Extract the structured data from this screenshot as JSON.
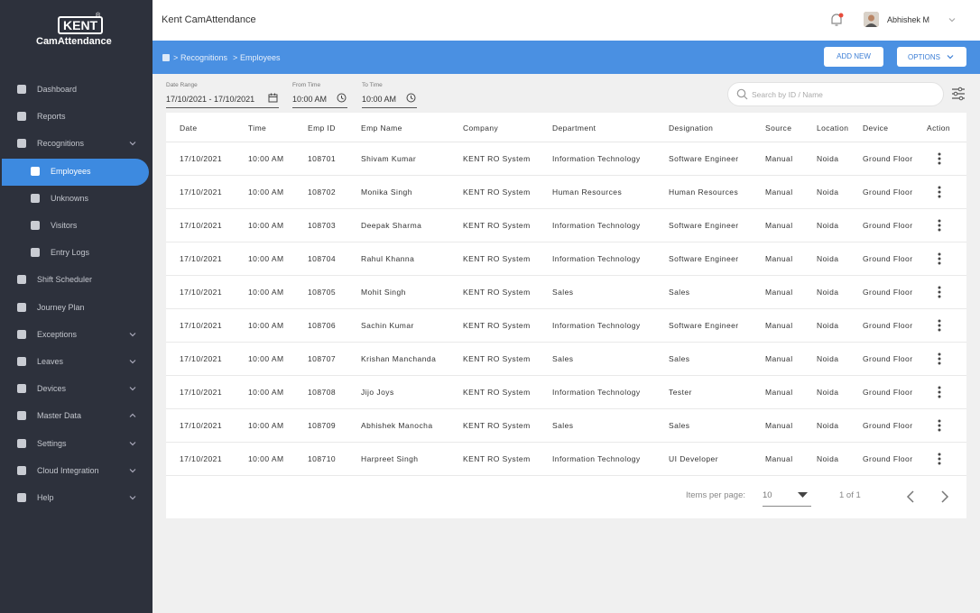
{
  "brand": {
    "logo": "KENT",
    "mark": "®",
    "name": "CamAttendance"
  },
  "header": {
    "app_title": "Kent CamAttendance",
    "user": "Abhishek M"
  },
  "sidebar": {
    "items": [
      {
        "label": "Dashboard"
      },
      {
        "label": "Reports"
      },
      {
        "label": "Recognitions",
        "chevron": "down",
        "children": [
          {
            "label": "Employees",
            "active": true
          },
          {
            "label": "Unknowns"
          },
          {
            "label": "Visitors"
          },
          {
            "label": "Entry Logs"
          }
        ]
      },
      {
        "label": "Shift Scheduler"
      },
      {
        "label": "Journey Plan"
      },
      {
        "label": "Exceptions",
        "chevron": "down"
      },
      {
        "label": "Leaves",
        "chevron": "down"
      },
      {
        "label": "Devices",
        "chevron": "down"
      },
      {
        "label": "Master Data",
        "chevron": "up"
      },
      {
        "label": "Settings",
        "chevron": "down"
      },
      {
        "label": "Cloud Integration",
        "chevron": "down"
      },
      {
        "label": "Help",
        "chevron": "down"
      }
    ]
  },
  "breadcrumb": {
    "separator": ">",
    "items": [
      "Recognitions",
      "Employees"
    ]
  },
  "buttons": {
    "add_new": "ADD NEW",
    "options": "OPTIONS"
  },
  "filters": {
    "date_range": {
      "label": "Date Range",
      "value": "17/10/2021 - 17/10/2021"
    },
    "from_time": {
      "label": "From Time",
      "value": "10:00 AM"
    },
    "to_time": {
      "label": "To Time",
      "value": "10:00 AM"
    },
    "search_placeholder": "Search by ID / Name"
  },
  "table": {
    "columns": [
      "Date",
      "Time",
      "Emp ID",
      "Emp Name",
      "Company",
      "Department",
      "Designation",
      "Source",
      "Location",
      "Device",
      "Action"
    ],
    "rows": [
      [
        "17/10/2021",
        "10:00 AM",
        "108701",
        "Shivam Kumar",
        "KENT RO System",
        "Information Technology",
        "Software Engineer",
        "Manual",
        "Noida",
        "Ground Floor"
      ],
      [
        "17/10/2021",
        "10:00 AM",
        "108702",
        "Monika Singh",
        "KENT RO System",
        "Human Resources",
        "Human Resources",
        "Manual",
        "Noida",
        "Ground Floor"
      ],
      [
        "17/10/2021",
        "10:00 AM",
        "108703",
        "Deepak Sharma",
        "KENT RO System",
        "Information Technology",
        "Software Engineer",
        "Manual",
        "Noida",
        "Ground Floor"
      ],
      [
        "17/10/2021",
        "10:00 AM",
        "108704",
        "Rahul Khanna",
        "KENT RO System",
        "Information Technology",
        "Software Engineer",
        "Manual",
        "Noida",
        "Ground Floor"
      ],
      [
        "17/10/2021",
        "10:00 AM",
        "108705",
        "Mohit Singh",
        "KENT RO System",
        "Sales",
        "Sales",
        "Manual",
        "Noida",
        "Ground Floor"
      ],
      [
        "17/10/2021",
        "10:00 AM",
        "108706",
        "Sachin Kumar",
        "KENT RO System",
        "Information Technology",
        "Software Engineer",
        "Manual",
        "Noida",
        "Ground Floor"
      ],
      [
        "17/10/2021",
        "10:00 AM",
        "108707",
        "Krishan Manchanda",
        "KENT RO System",
        "Sales",
        "Sales",
        "Manual",
        "Noida",
        "Ground Floor"
      ],
      [
        "17/10/2021",
        "10:00 AM",
        "108708",
        "Jijo Joys",
        "KENT RO System",
        "Information Technology",
        "Tester",
        "Manual",
        "Noida",
        "Ground Floor"
      ],
      [
        "17/10/2021",
        "10:00 AM",
        "108709",
        "Abhishek Manocha",
        "KENT RO System",
        "Sales",
        "Sales",
        "Manual",
        "Noida",
        "Ground Floor"
      ],
      [
        "17/10/2021",
        "10:00 AM",
        "108710",
        "Harpreet Singh",
        "KENT RO System",
        "Information Technology",
        "UI Developer",
        "Manual",
        "Noida",
        "Ground Floor"
      ]
    ]
  },
  "pagination": {
    "items_per_page_label": "Items per page:",
    "items_per_page": "10",
    "range": "1 of 1"
  }
}
